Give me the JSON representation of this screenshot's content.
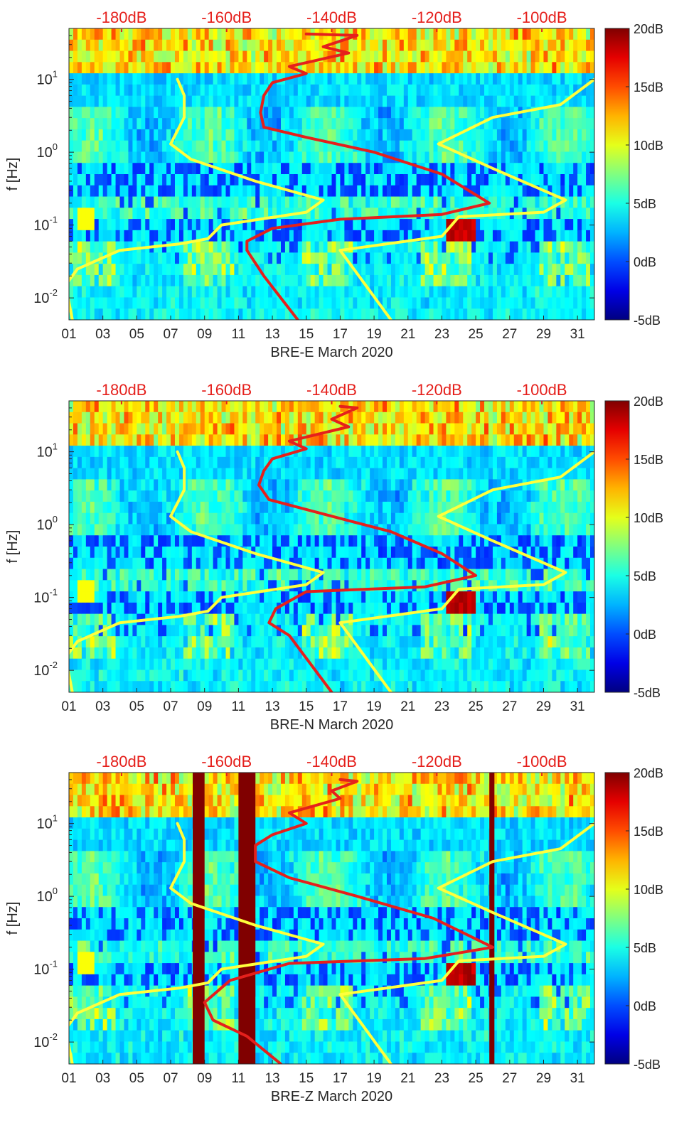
{
  "chart_data": [
    {
      "type": "heatmap",
      "title": "",
      "xlabel": "BRE-E March 2020",
      "ylabel": "f [Hz]",
      "x_ticks": [
        "01",
        "03",
        "05",
        "07",
        "09",
        "11",
        "13",
        "15",
        "17",
        "19",
        "21",
        "23",
        "25",
        "27",
        "29",
        "31"
      ],
      "x_range": [
        1,
        32
      ],
      "y_scale": "log",
      "y_range": [
        0.005,
        50
      ],
      "y_ticks": [
        {
          "value": 0.01,
          "base": "10",
          "exp": "-2"
        },
        {
          "value": 0.1,
          "base": "10",
          "exp": "-1"
        },
        {
          "value": 1,
          "base": "10",
          "exp": "0"
        },
        {
          "value": 10,
          "base": "10",
          "exp": "1"
        }
      ],
      "top_axis_ticks": [
        "-180dB",
        "-160dB",
        "-140dB",
        "-120dB",
        "-100dB"
      ],
      "top_axis_range": [
        -190,
        -90
      ],
      "colorbar": {
        "ticks": [
          "20dB",
          "15dB",
          "10dB",
          "5dB",
          "0dB",
          "-5dB"
        ],
        "range": [
          -5,
          20
        ]
      },
      "series": [
        {
          "name": "noise model low (yellow)",
          "color": "#ffff3c",
          "points": [
            [
              7.4,
              10
            ],
            [
              7.8,
              6
            ],
            [
              7.8,
              3
            ],
            [
              7,
              1.3
            ],
            [
              8.2,
              0.8
            ],
            [
              12,
              0.4
            ],
            [
              16,
              0.22
            ],
            [
              15,
              0.15
            ],
            [
              10,
              0.1
            ],
            [
              9.2,
              0.065
            ],
            [
              7.5,
              0.055
            ],
            [
              4,
              0.045
            ],
            [
              1.5,
              0.025
            ],
            [
              0.8,
              0.015
            ],
            [
              1.2,
              0.005
            ]
          ]
        },
        {
          "name": "noise model high (yellow)",
          "color": "#ffff3c",
          "points": [
            [
              32,
              10
            ],
            [
              30,
              4.5
            ],
            [
              26,
              3
            ],
            [
              22.8,
              1.3
            ],
            [
              26,
              0.6
            ],
            [
              30.3,
              0.22
            ],
            [
              29,
              0.15
            ],
            [
              24,
              0.13
            ],
            [
              23,
              0.07
            ],
            [
              17,
              0.045
            ],
            [
              20,
              0.005
            ]
          ]
        },
        {
          "name": "station spectrum (red)",
          "color": "#e5201c",
          "points": [
            [
              15,
              42
            ],
            [
              18,
              40
            ],
            [
              16,
              28
            ],
            [
              17.5,
              23
            ],
            [
              14,
              15
            ],
            [
              15,
              12
            ],
            [
              13,
              9
            ],
            [
              12.5,
              6
            ],
            [
              12.3,
              3.5
            ],
            [
              12.5,
              2.2
            ],
            [
              15,
              1.6
            ],
            [
              19,
              1
            ],
            [
              23,
              0.5
            ],
            [
              25.8,
              0.2
            ],
            [
              23,
              0.14
            ],
            [
              17,
              0.12
            ],
            [
              13,
              0.09
            ],
            [
              11.5,
              0.06
            ],
            [
              11.5,
              0.045
            ],
            [
              12.5,
              0.02
            ],
            [
              14.5,
              0.005
            ]
          ]
        }
      ]
    },
    {
      "type": "heatmap",
      "title": "",
      "xlabel": "BRE-N March 2020",
      "ylabel": "f [Hz]",
      "x_ticks": [
        "01",
        "03",
        "05",
        "07",
        "09",
        "11",
        "13",
        "15",
        "17",
        "19",
        "21",
        "23",
        "25",
        "27",
        "29",
        "31"
      ],
      "x_range": [
        1,
        32
      ],
      "y_scale": "log",
      "y_range": [
        0.005,
        50
      ],
      "y_ticks": [
        {
          "value": 0.01,
          "base": "10",
          "exp": "-2"
        },
        {
          "value": 0.1,
          "base": "10",
          "exp": "-1"
        },
        {
          "value": 1,
          "base": "10",
          "exp": "0"
        },
        {
          "value": 10,
          "base": "10",
          "exp": "1"
        }
      ],
      "top_axis_ticks": [
        "-180dB",
        "-160dB",
        "-140dB",
        "-120dB",
        "-100dB"
      ],
      "top_axis_range": [
        -190,
        -90
      ],
      "colorbar": {
        "ticks": [
          "20dB",
          "15dB",
          "10dB",
          "5dB",
          "0dB",
          "-5dB"
        ],
        "range": [
          -5,
          20
        ]
      },
      "series": [
        {
          "name": "noise model low (yellow)",
          "color": "#ffff3c",
          "points": [
            [
              7.4,
              10
            ],
            [
              7.8,
              6
            ],
            [
              7.8,
              3
            ],
            [
              7,
              1.3
            ],
            [
              8.2,
              0.8
            ],
            [
              12,
              0.4
            ],
            [
              16,
              0.22
            ],
            [
              15,
              0.15
            ],
            [
              10,
              0.1
            ],
            [
              9.2,
              0.065
            ],
            [
              7.5,
              0.055
            ],
            [
              4,
              0.045
            ],
            [
              1.5,
              0.025
            ],
            [
              0.8,
              0.015
            ],
            [
              1.2,
              0.005
            ]
          ]
        },
        {
          "name": "noise model high (yellow)",
          "color": "#ffff3c",
          "points": [
            [
              32,
              10
            ],
            [
              30,
              4.5
            ],
            [
              26,
              3
            ],
            [
              22.8,
              1.3
            ],
            [
              26,
              0.6
            ],
            [
              30.3,
              0.22
            ],
            [
              29,
              0.15
            ],
            [
              24,
              0.13
            ],
            [
              23,
              0.07
            ],
            [
              17,
              0.045
            ],
            [
              20,
              0.005
            ]
          ]
        },
        {
          "name": "station spectrum (red)",
          "color": "#e5201c",
          "points": [
            [
              17,
              42
            ],
            [
              18,
              40
            ],
            [
              16.5,
              28
            ],
            [
              17.5,
              22
            ],
            [
              14,
              14
            ],
            [
              15,
              11
            ],
            [
              13,
              8
            ],
            [
              12.5,
              5.5
            ],
            [
              12.2,
              3.5
            ],
            [
              12.8,
              2.2
            ],
            [
              16,
              1.4
            ],
            [
              20,
              0.8
            ],
            [
              23,
              0.4
            ],
            [
              25,
              0.2
            ],
            [
              22,
              0.14
            ],
            [
              15,
              0.12
            ],
            [
              13.2,
              0.07
            ],
            [
              12.8,
              0.045
            ],
            [
              14,
              0.03
            ],
            [
              16.5,
              0.005
            ]
          ]
        }
      ]
    },
    {
      "type": "heatmap",
      "title": "",
      "xlabel": "BRE-Z March 2020",
      "ylabel": "f [Hz]",
      "x_ticks": [
        "01",
        "03",
        "05",
        "07",
        "09",
        "11",
        "13",
        "15",
        "17",
        "19",
        "21",
        "23",
        "25",
        "27",
        "29",
        "31"
      ],
      "x_range": [
        1,
        32
      ],
      "y_scale": "log",
      "y_range": [
        0.005,
        50
      ],
      "y_ticks": [
        {
          "value": 0.01,
          "base": "10",
          "exp": "-2"
        },
        {
          "value": 0.1,
          "base": "10",
          "exp": "-1"
        },
        {
          "value": 1,
          "base": "10",
          "exp": "0"
        },
        {
          "value": 10,
          "base": "10",
          "exp": "1"
        }
      ],
      "top_axis_ticks": [
        "-180dB",
        "-160dB",
        "-140dB",
        "-120dB",
        "-100dB"
      ],
      "top_axis_range": [
        -190,
        -90
      ],
      "colorbar": {
        "ticks": [
          "20dB",
          "15dB",
          "10dB",
          "5dB",
          "0dB",
          "-5dB"
        ],
        "range": [
          -5,
          20
        ]
      },
      "saturated_days": [
        [
          8.3,
          9.0
        ],
        [
          11.0,
          12.0
        ],
        [
          25.8,
          26.1
        ]
      ],
      "series": [
        {
          "name": "noise model low (yellow)",
          "color": "#ffff3c",
          "points": [
            [
              7.4,
              10
            ],
            [
              7.8,
              6
            ],
            [
              7.8,
              3
            ],
            [
              7,
              1.3
            ],
            [
              8.2,
              0.8
            ],
            [
              12,
              0.4
            ],
            [
              16,
              0.22
            ],
            [
              15,
              0.15
            ],
            [
              10,
              0.1
            ],
            [
              9.2,
              0.065
            ],
            [
              7.5,
              0.055
            ],
            [
              4,
              0.045
            ],
            [
              1.5,
              0.025
            ],
            [
              0.8,
              0.015
            ],
            [
              1.2,
              0.005
            ]
          ]
        },
        {
          "name": "noise model high (yellow)",
          "color": "#ffff3c",
          "points": [
            [
              32,
              10
            ],
            [
              30,
              4.5
            ],
            [
              26,
              3
            ],
            [
              22.8,
              1.3
            ],
            [
              26,
              0.6
            ],
            [
              30.3,
              0.22
            ],
            [
              29,
              0.15
            ],
            [
              24,
              0.13
            ],
            [
              23,
              0.07
            ],
            [
              17,
              0.045
            ],
            [
              20,
              0.005
            ]
          ]
        },
        {
          "name": "station spectrum (red)",
          "color": "#e5201c",
          "points": [
            [
              17,
              40
            ],
            [
              18,
              38
            ],
            [
              16.5,
              28
            ],
            [
              17,
              22
            ],
            [
              14,
              14
            ],
            [
              15,
              10
            ],
            [
              13,
              7
            ],
            [
              12,
              5
            ],
            [
              12,
              3
            ],
            [
              14,
              1.8
            ],
            [
              18,
              1
            ],
            [
              22.5,
              0.5
            ],
            [
              26,
              0.2
            ],
            [
              22,
              0.14
            ],
            [
              14,
              0.12
            ],
            [
              10.5,
              0.07
            ],
            [
              9,
              0.035
            ],
            [
              9.5,
              0.02
            ],
            [
              11.5,
              0.012
            ],
            [
              13.5,
              0.005
            ]
          ]
        }
      ]
    }
  ]
}
